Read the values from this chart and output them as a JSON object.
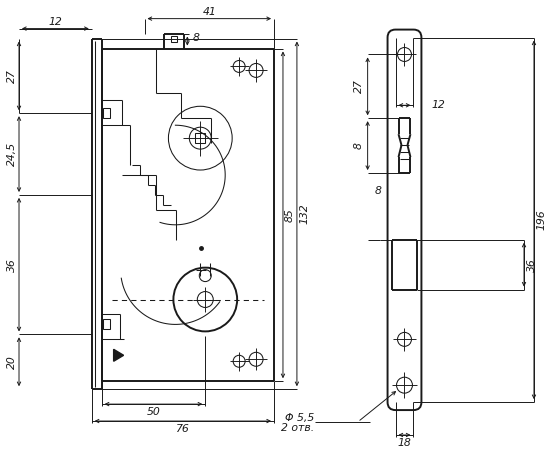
{
  "bg": "#ffffff",
  "lc": "#1a1a1a",
  "lw": 1.4,
  "lt": 0.75,
  "ld": 0.7,
  "fs": 7.8,
  "figw": 5.5,
  "figh": 4.5,
  "dpi": 100,
  "labels": {
    "d12": "12",
    "d27": "27",
    "d245": "24,5",
    "d36": "36",
    "d20": "20",
    "d41": "41",
    "d8": "8",
    "d85": "85",
    "d132": "132",
    "d50": "50",
    "d76": "76",
    "d12r": "12",
    "d27r": "27",
    "d8r": "8",
    "d36r": "36",
    "d196": "196",
    "d18": "18",
    "dphi": "Φ 5,5",
    "dotv": "2 отв."
  }
}
